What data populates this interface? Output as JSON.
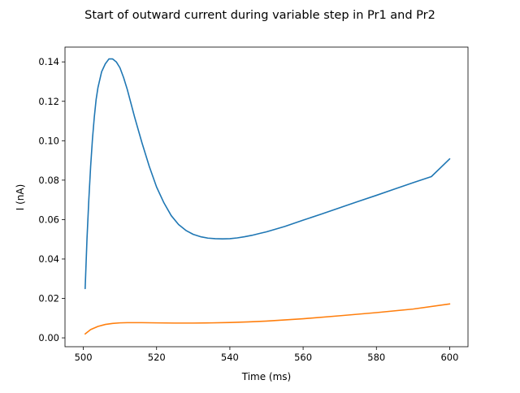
{
  "chart_data": {
    "type": "line",
    "title": "Start of outward current during variable step in Pr1 and Pr2",
    "xlabel": "Time (ms)",
    "ylabel": "I (nA)",
    "xlim": [
      495,
      605
    ],
    "ylim": [
      -0.0045,
      0.1475
    ],
    "xticks": [
      500,
      520,
      540,
      560,
      580,
      600
    ],
    "yticks": [
      0.0,
      0.02,
      0.04,
      0.06,
      0.08,
      0.1,
      0.12,
      0.14
    ],
    "xtick_labels": [
      "500",
      "520",
      "540",
      "560",
      "580",
      "600"
    ],
    "ytick_labels": [
      "0.00",
      "0.02",
      "0.04",
      "0.06",
      "0.08",
      "0.10",
      "0.12",
      "0.14"
    ],
    "grid": false,
    "legend": "none",
    "series": [
      {
        "color": "#1f77b4",
        "x": [
          500.5,
          501.0,
          501.5,
          502.0,
          502.5,
          503.0,
          503.5,
          504.0,
          505.0,
          506.0,
          507.0,
          508.0,
          509.0,
          510.0,
          511.0,
          512.0,
          514.0,
          516.0,
          518.0,
          520.0,
          522.0,
          524.0,
          526.0,
          528.0,
          530.0,
          532.0,
          534.0,
          536.0,
          538.0,
          540.0,
          542.0,
          544.0,
          546.0,
          548.0,
          550.0,
          555.0,
          560.0,
          565.0,
          570.0,
          575.0,
          580.0,
          585.0,
          590.0,
          595.0,
          600.0
        ],
        "y": [
          0.025,
          0.05,
          0.07,
          0.087,
          0.101,
          0.112,
          0.121,
          0.127,
          0.135,
          0.139,
          0.1415,
          0.1415,
          0.14,
          0.137,
          0.132,
          0.126,
          0.112,
          0.099,
          0.087,
          0.0765,
          0.0685,
          0.062,
          0.0575,
          0.0545,
          0.0525,
          0.0513,
          0.0506,
          0.0503,
          0.0502,
          0.0503,
          0.0507,
          0.0513,
          0.052,
          0.0529,
          0.0538,
          0.0565,
          0.0597,
          0.0628,
          0.066,
          0.0692,
          0.0723,
          0.0755,
          0.0787,
          0.0818,
          0.0908
        ]
      },
      {
        "color": "#ff7f0e",
        "x": [
          500.5,
          502.0,
          504.0,
          506.0,
          508.0,
          510.0,
          512.0,
          514.0,
          516.0,
          520.0,
          525.0,
          530.0,
          535.0,
          540.0,
          545.0,
          550.0,
          560.0,
          570.0,
          580.0,
          590.0,
          600.0
        ],
        "y": [
          0.002,
          0.0042,
          0.0058,
          0.0068,
          0.0073,
          0.0076,
          0.0077,
          0.0077,
          0.0077,
          0.0076,
          0.0075,
          0.0075,
          0.0076,
          0.0078,
          0.0081,
          0.0085,
          0.0097,
          0.0112,
          0.0128,
          0.0146,
          0.0172
        ]
      }
    ]
  }
}
